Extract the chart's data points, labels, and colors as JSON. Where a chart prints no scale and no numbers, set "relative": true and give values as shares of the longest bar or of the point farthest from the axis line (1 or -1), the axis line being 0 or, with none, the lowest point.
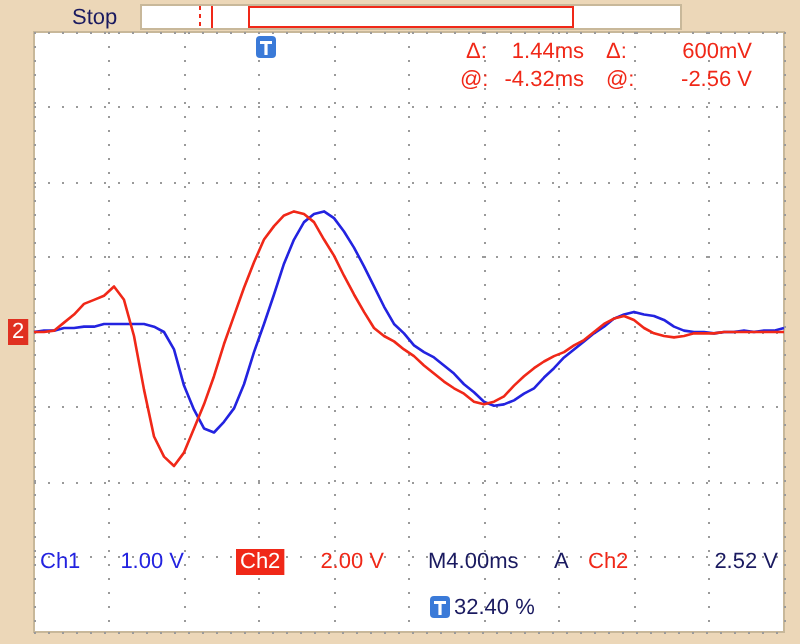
{
  "chart_data": {
    "type": "line",
    "relative": true,
    "grid": true,
    "line_style": "solid",
    "tick_labels": false,
    "categories": [
      null,
      null,
      null,
      null,
      null,
      null,
      null,
      null,
      null,
      null,
      null,
      null,
      null,
      null,
      null,
      null,
      null,
      null,
      null,
      null,
      null,
      null,
      null,
      null,
      null,
      null,
      null,
      null,
      null,
      null,
      null,
      null,
      null,
      null,
      null,
      null,
      null,
      null,
      null,
      null,
      null,
      null,
      null,
      null,
      null,
      null,
      null,
      null,
      null,
      null,
      null,
      null,
      null,
      null,
      null,
      null,
      null,
      null,
      null,
      null,
      null,
      null,
      null,
      null,
      null,
      null,
      null,
      null,
      null,
      null,
      null,
      null,
      null,
      null,
      null,
      null
    ],
    "series": [
      {
        "color": "#2323e0",
        "values": [
          0,
          0.01,
          0.01,
          0.03,
          0.03,
          0.04,
          0.04,
          0.06,
          0.06,
          0.06,
          0.06,
          0.06,
          0.04,
          0,
          -0.13,
          -0.4,
          -0.58,
          -0.72,
          -0.75,
          -0.67,
          -0.57,
          -0.39,
          -0.15,
          0.06,
          0.28,
          0.51,
          0.69,
          0.82,
          0.88,
          0.9,
          0.85,
          0.75,
          0.63,
          0.49,
          0.34,
          0.19,
          0.06,
          -0.01,
          -0.1,
          -0.15,
          -0.19,
          -0.25,
          -0.31,
          -0.39,
          -0.45,
          -0.52,
          -0.55,
          -0.54,
          -0.51,
          -0.46,
          -0.42,
          -0.34,
          -0.27,
          -0.19,
          -0.13,
          -0.07,
          -0.01,
          0.04,
          0.1,
          0.13,
          0.15,
          0.13,
          0.12,
          0.09,
          0.04,
          0.01,
          0,
          0,
          -0.01,
          0,
          0,
          0.01,
          0,
          0.01,
          0.01,
          0.03
        ]
      },
      {
        "color": "#f02818",
        "values": [
          0,
          0,
          0.01,
          0.07,
          0.13,
          0.21,
          0.24,
          0.27,
          0.34,
          0.24,
          -0.03,
          -0.43,
          -0.78,
          -0.93,
          -1,
          -0.9,
          -0.72,
          -0.54,
          -0.33,
          -0.09,
          0.12,
          0.33,
          0.52,
          0.69,
          0.79,
          0.87,
          0.9,
          0.88,
          0.82,
          0.69,
          0.57,
          0.42,
          0.28,
          0.15,
          0.03,
          -0.03,
          -0.07,
          -0.13,
          -0.18,
          -0.25,
          -0.31,
          -0.37,
          -0.42,
          -0.46,
          -0.52,
          -0.54,
          -0.52,
          -0.48,
          -0.4,
          -0.33,
          -0.27,
          -0.22,
          -0.18,
          -0.15,
          -0.1,
          -0.06,
          0,
          0.06,
          0.1,
          0.12,
          0.09,
          0.03,
          -0.01,
          -0.03,
          -0.04,
          -0.03,
          -0.01,
          -0.01,
          -0.01,
          0,
          0,
          0,
          0,
          0,
          0,
          0
        ]
      }
    ],
    "annotations": [
      "Stop",
      "Δ:",
      "1.44ms",
      "Δ:",
      "600mV",
      "@:",
      "-4.32ms",
      "@:",
      "-2.56 V",
      "Ch1",
      "1.00 V",
      "Ch2",
      "2.00 V",
      "M4.00ms",
      "A",
      "Ch2",
      "2.52 V",
      "32.40 %",
      "2"
    ]
  }
}
